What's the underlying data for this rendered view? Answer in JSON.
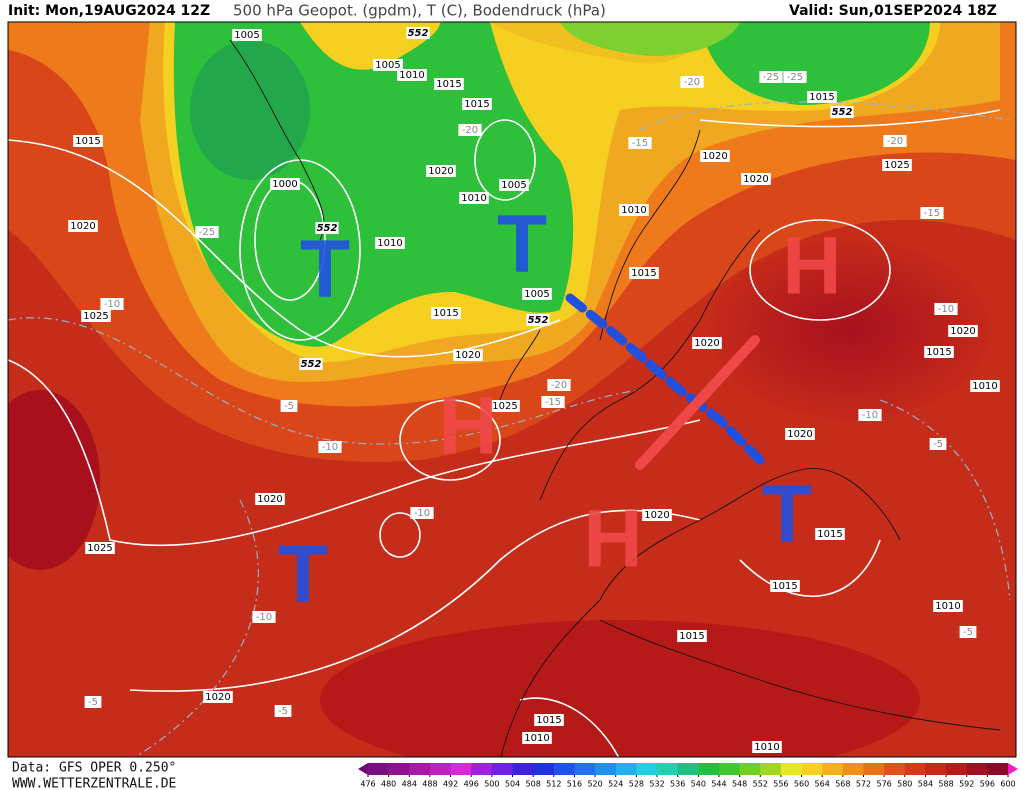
{
  "header": {
    "init": "Init: Mon,19AUG2024 12Z",
    "title": "500 hPa Geopot. (gpdm), T (C), Bodendruck (hPa)",
    "valid": "Valid: Sun,01SEP2024 18Z"
  },
  "footer": {
    "source": "Data: GFS OPER 0.250°",
    "website": "WWW.WETTERZENTRALE.DE"
  },
  "colorbar": {
    "ticks": [
      476,
      480,
      484,
      488,
      492,
      496,
      500,
      504,
      508,
      512,
      516,
      520,
      524,
      528,
      532,
      536,
      540,
      544,
      548,
      552,
      556,
      560,
      564,
      568,
      572,
      576,
      580,
      584,
      588,
      592,
      596,
      600
    ]
  },
  "map": {
    "isobar_labels": [
      "1005",
      "1005",
      "1010",
      "1015",
      "1015",
      "1015",
      "1020",
      "1020",
      "1025",
      "1000",
      "1020",
      "1010",
      "1005",
      "1010",
      "1020",
      "1010",
      "1015",
      "1005",
      "1025",
      "1015",
      "1020",
      "1020",
      "1015",
      "1020",
      "1010",
      "1025",
      "1020",
      "1020",
      "1020",
      "1015",
      "1025",
      "1015",
      "1010",
      "1015",
      "1020",
      "1015",
      "1010",
      "1010",
      "1015"
    ],
    "temperature_labels": [
      "-20",
      "-25",
      "-25",
      "-20",
      "-15",
      "-20",
      "-25",
      "-15",
      "-10",
      "-10",
      "-5",
      "-20",
      "-15",
      "-10",
      "-10",
      "-5",
      "-10",
      "-10",
      "-5",
      "-5",
      "-5"
    ],
    "geopotential_labels": [
      "552",
      "552",
      "552",
      "552",
      "552"
    ],
    "annotations": [
      "T",
      "T",
      "T",
      "T",
      "H",
      "H",
      "H"
    ]
  }
}
